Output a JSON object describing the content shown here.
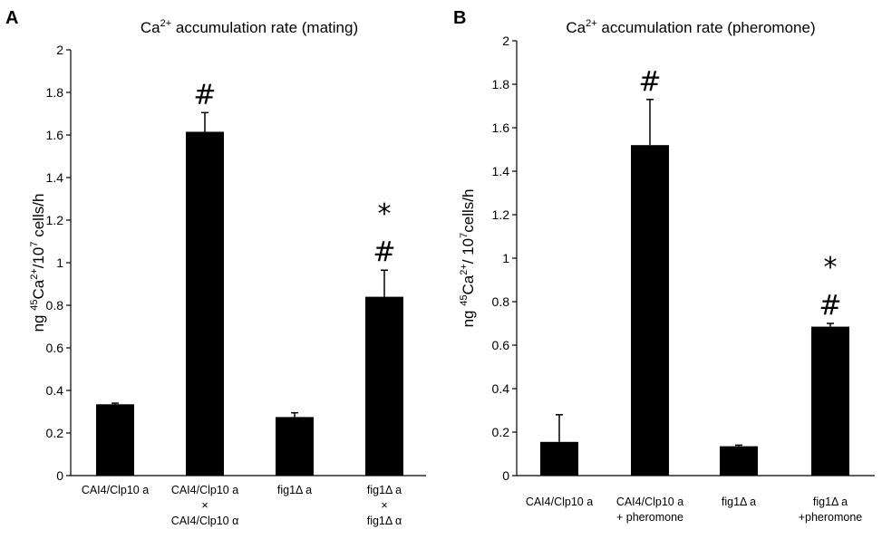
{
  "chart_data": [
    {
      "type": "bar",
      "panel": "A",
      "title_prefix": "Ca",
      "title_sup": "2+",
      "title_suffix": " accumulation rate (mating)",
      "ylabel_parts": [
        "ng ",
        "45",
        "Ca",
        "2+",
        "/10",
        "7",
        " cells/h"
      ],
      "ylim": [
        0,
        2
      ],
      "yticks": [
        "0",
        "0.2",
        "0.4",
        "0.6",
        "0.8",
        "1",
        "1.2",
        "1.4",
        "1.6",
        "1.8",
        "2"
      ],
      "categories": [
        {
          "lines": [
            "CAI4/Clp10 a"
          ]
        },
        {
          "lines": [
            "CAI4/Clp10 a",
            "×",
            "CAI4/Clp10 α"
          ]
        },
        {
          "lines": [
            "fig1Δ a"
          ]
        },
        {
          "lines": [
            "fig1Δ a",
            "×",
            "fig1Δ α"
          ]
        }
      ],
      "values": [
        0.335,
        1.615,
        0.275,
        0.84
      ],
      "errors": [
        0.005,
        0.09,
        0.02,
        0.125
      ],
      "annotations": [
        [],
        [
          "#"
        ],
        [],
        [
          "#",
          "*"
        ]
      ]
    },
    {
      "type": "bar",
      "panel": "B",
      "title_prefix": "Ca",
      "title_sup": "2+",
      "title_suffix": " accumulation rate (pheromone)",
      "ylabel_parts": [
        "ng ",
        "45",
        "Ca",
        "2+",
        "/ 10",
        "7",
        "cells/h"
      ],
      "ylim": [
        0,
        2
      ],
      "yticks": [
        "0",
        "0.2",
        "0.4",
        "0.6",
        "0.8",
        "1",
        "1.2",
        "1.4",
        "1.6",
        "1.8",
        "2"
      ],
      "categories": [
        {
          "lines": [
            "CAI4/Clp10 a"
          ]
        },
        {
          "lines": [
            "CAI4/Clp10 a",
            "+ pheromone"
          ]
        },
        {
          "lines": [
            "fig1Δ a"
          ]
        },
        {
          "lines": [
            "fig1Δ a",
            "+pheromone"
          ]
        }
      ],
      "values": [
        0.155,
        1.52,
        0.135,
        0.685
      ],
      "errors": [
        0.125,
        0.21,
        0.005,
        0.015
      ],
      "annotations": [
        [],
        [
          "#"
        ],
        [],
        [
          "#",
          "*"
        ]
      ]
    }
  ]
}
